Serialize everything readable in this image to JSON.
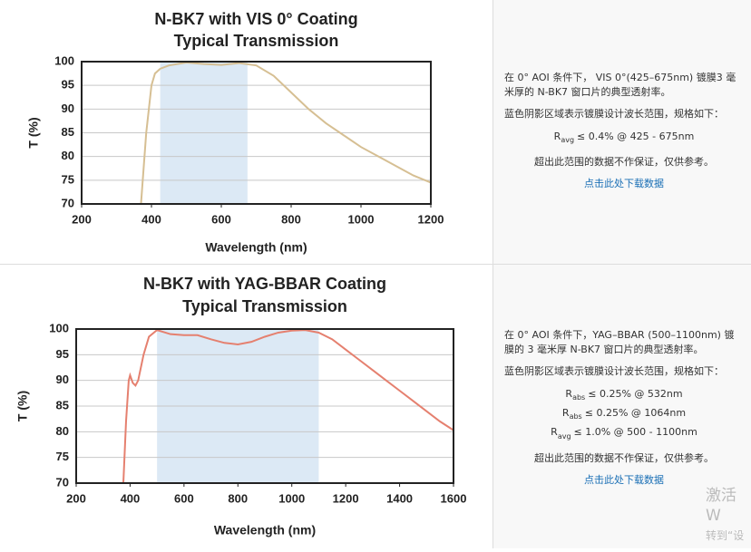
{
  "chart_data": [
    {
      "type": "line",
      "title": "N-BK7 with VIS 0° Coating",
      "subtitle": "Typical Transmission",
      "x_label": "Wavelength (nm)",
      "y_label": "T (%)",
      "x": [
        370,
        385,
        400,
        410,
        425,
        450,
        500,
        550,
        600,
        650,
        700,
        750,
        800,
        850,
        900,
        950,
        1000,
        1050,
        1100,
        1150,
        1200
      ],
      "series": [
        {
          "color": "#d6bf93",
          "values": [
            70,
            85,
            95,
            97.5,
            98.5,
            99.2,
            99.8,
            99.5,
            99.3,
            99.7,
            99.2,
            97,
            93.5,
            90,
            87,
            84.5,
            82,
            80,
            78,
            76,
            74.5
          ]
        }
      ],
      "shade": [
        425,
        675
      ],
      "shade_color": "#dce9f5",
      "xlim": [
        200,
        1200
      ],
      "ylim": [
        70,
        100
      ],
      "xticks": [
        200,
        400,
        600,
        800,
        1000,
        1200
      ],
      "yticks": [
        70,
        75,
        80,
        85,
        90,
        95,
        100
      ],
      "grid": true
    },
    {
      "type": "line",
      "title": "N-BK7 with YAG-BBAR Coating",
      "subtitle": "Typical Transmission",
      "x_label": "Wavelength (nm)",
      "y_label": "T (%)",
      "x": [
        375,
        385,
        395,
        400,
        410,
        420,
        430,
        450,
        470,
        500,
        550,
        600,
        650,
        700,
        750,
        800,
        850,
        900,
        950,
        1000,
        1050,
        1100,
        1150,
        1200,
        1250,
        1300,
        1350,
        1400,
        1450,
        1500,
        1550,
        1600
      ],
      "series": [
        {
          "color": "#e5806f",
          "values": [
            70,
            82,
            90,
            91,
            89.5,
            89,
            90,
            95,
            98.5,
            99.8,
            99,
            98.8,
            98.8,
            98,
            97.3,
            97,
            97.5,
            98.5,
            99.3,
            99.7,
            99.8,
            99.3,
            98,
            96,
            94,
            92,
            90,
            88,
            86,
            84,
            82,
            80.3
          ]
        }
      ],
      "shade": [
        500,
        1100
      ],
      "shade_color": "#dce9f5",
      "xlim": [
        200,
        1600
      ],
      "ylim": [
        70,
        100
      ],
      "xticks": [
        200,
        400,
        600,
        800,
        1000,
        1200,
        1400,
        1600
      ],
      "yticks": [
        70,
        75,
        80,
        85,
        90,
        95,
        100
      ],
      "grid": true
    }
  ],
  "panels": [
    {
      "description": "在 0° AOI 条件下， VIS 0°(425–675nm) 镀膜3 毫米厚的 N-BK7 窗口片的典型透射率。",
      "shade_note": "蓝色阴影区域表示镀膜设计波长范围，规格如下：",
      "specs": [
        {
          "symbol": "R",
          "sub": "avg",
          "text": "≤ 0.4% @ 425 - 675nm"
        }
      ],
      "disclaimer": "超出此范围的数据不作保证，仅供参考。",
      "link": "点击此处下载数据"
    },
    {
      "description": "在 0° AOI 条件下，YAG–BBAR (500–1100nm) 镀膜的 3 毫米厚 N-BK7 窗口片的典型透射率。",
      "shade_note": "蓝色阴影区域表示镀膜设计波长范围，规格如下：",
      "specs": [
        {
          "symbol": "R",
          "sub": "abs",
          "text": "≤ 0.25% @ 532nm"
        },
        {
          "symbol": "R",
          "sub": "abs",
          "text": "≤ 0.25% @ 1064nm"
        },
        {
          "symbol": "R",
          "sub": "avg",
          "text": "≤ 1.0% @ 500 - 1100nm"
        }
      ],
      "disclaimer": "超出此范围的数据不作保证，仅供参考。",
      "link": "点击此处下载数据"
    }
  ],
  "watermark": {
    "line1": "激活 W",
    "line2": "转到“设"
  }
}
